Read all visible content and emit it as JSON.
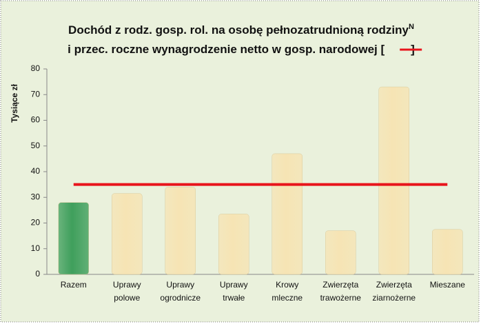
{
  "chart_data": {
    "type": "bar",
    "title_line1": "Dochód z rodz. gosp. rol. na osobę pełnozatrudnioną rodziny",
    "title_superscript": "N",
    "title_line2": "i przec. roczne wynagrodzenie netto w gosp. narodowej [",
    "title_close": "]",
    "y_label": "Tysiące zł",
    "categories": [
      [
        "Razem"
      ],
      [
        "Uprawy",
        "polowe"
      ],
      [
        "Uprawy",
        "ogrodnicze"
      ],
      [
        "Uprawy",
        "trwałe"
      ],
      [
        "Krowy",
        "mleczne"
      ],
      [
        "Zwierzęta",
        "trawożerne"
      ],
      [
        "Zwierzęta",
        "ziarnożerne"
      ],
      [
        "Mieszane"
      ]
    ],
    "values": [
      28,
      31.5,
      34,
      23.5,
      47,
      17,
      73,
      17.5
    ],
    "colors": [
      "#3f9f5c",
      "#f6e4b4",
      "#f6e4b4",
      "#f6e4b4",
      "#f6e4b4",
      "#f6e4b4",
      "#f6e4b4",
      "#f6e4b4"
    ],
    "reference_line": {
      "value": 35,
      "color": "#e8141b"
    },
    "ylim": [
      0,
      80
    ],
    "yticks": [
      0,
      10,
      20,
      30,
      40,
      50,
      60,
      70,
      80
    ],
    "grid": false
  }
}
